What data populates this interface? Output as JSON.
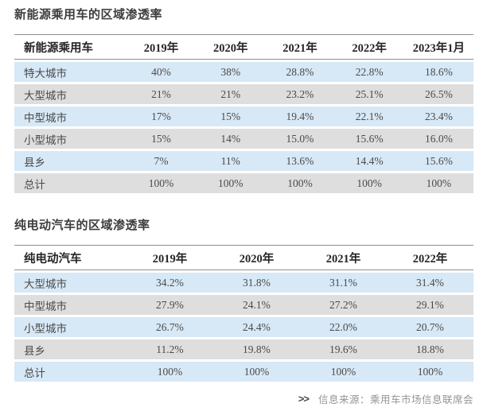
{
  "chart_data": [
    {
      "type": "table",
      "title": "新能源乘用车的区域渗透率",
      "columns": [
        "新能源乘用车",
        "2019年",
        "2020年",
        "2021年",
        "2022年",
        "2023年1月"
      ],
      "rows": [
        {
          "label": "特大城市",
          "values": [
            "40%",
            "38%",
            "28.8%",
            "22.8%",
            "18.6%"
          ]
        },
        {
          "label": "大型城市",
          "values": [
            "21%",
            "21%",
            "23.2%",
            "25.1%",
            "26.5%"
          ]
        },
        {
          "label": "中型城市",
          "values": [
            "17%",
            "15%",
            "19.4%",
            "22.1%",
            "23.4%"
          ]
        },
        {
          "label": "小型城市",
          "values": [
            "15%",
            "14%",
            "15.0%",
            "15.6%",
            "16.0%"
          ]
        },
        {
          "label": "县乡",
          "values": [
            "7%",
            "11%",
            "13.6%",
            "14.4%",
            "15.6%"
          ]
        },
        {
          "label": "总计",
          "values": [
            "100%",
            "100%",
            "100%",
            "100%",
            "100%"
          ]
        }
      ],
      "layout": {
        "stripe_pattern": [
          "blue",
          "gray"
        ],
        "grid": "horizontal-rules-header-only"
      }
    },
    {
      "type": "table",
      "title": "纯电动汽车的区域渗透率",
      "columns": [
        "纯电动汽车",
        "2019年",
        "2020年",
        "2021年",
        "2022年"
      ],
      "rows": [
        {
          "label": "大型城市",
          "values": [
            "34.2%",
            "31.8%",
            "31.1%",
            "31.4%"
          ]
        },
        {
          "label": "中型城市",
          "values": [
            "27.9%",
            "24.1%",
            "27.2%",
            "29.1%"
          ]
        },
        {
          "label": "小型城市",
          "values": [
            "26.7%",
            "24.4%",
            "22.0%",
            "20.7%"
          ]
        },
        {
          "label": "县乡",
          "values": [
            "11.2%",
            "19.8%",
            "19.6%",
            "18.8%"
          ]
        },
        {
          "label": "总计",
          "values": [
            "100%",
            "100%",
            "100%",
            "100%"
          ]
        }
      ],
      "layout": {
        "stripe_pattern": [
          "blue",
          "gray"
        ],
        "grid": "horizontal-rules-header-only"
      }
    }
  ],
  "footer": {
    "arrow_icon": ">>",
    "source_label": "信息来源：乘用车市场信息联席会"
  },
  "colors": {
    "row_blue": "#d7e8f6",
    "row_gray": "#dedede",
    "rule_line": "#8f8f8f",
    "title_text": "#3d3d3d",
    "header_text": "#262626",
    "body_text": "#4a4a4a",
    "source_text": "#949494",
    "background": "#ffffff"
  }
}
